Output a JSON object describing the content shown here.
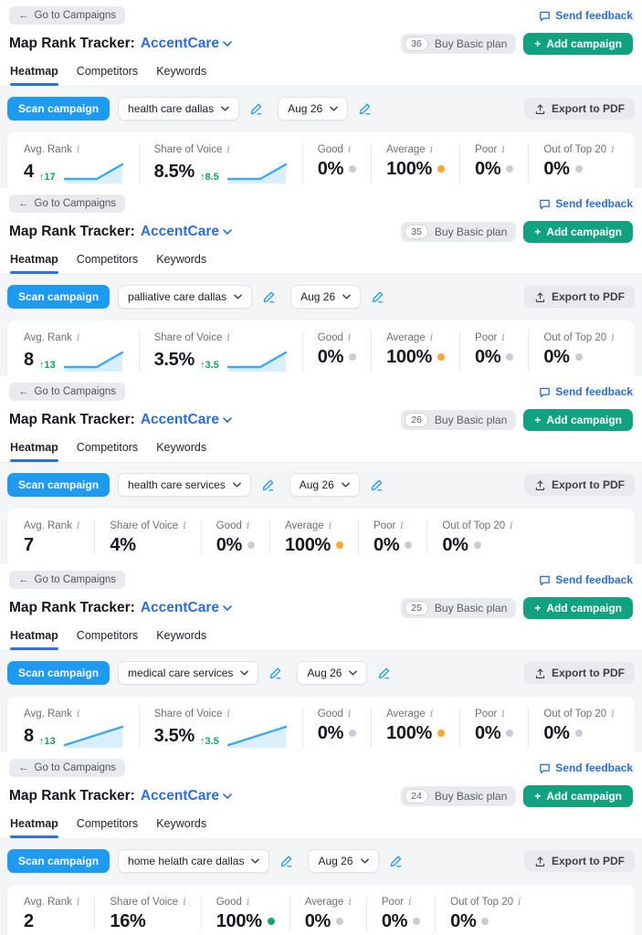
{
  "colors": {
    "ring_gray": "#c9ccd6",
    "ring_orange": "#ffa62e",
    "ring_green": "#14a374",
    "accent_blue": "#1e9bf0",
    "link_blue": "#2a6fd4",
    "green_button": "#12a181",
    "delta_green": "#169e68",
    "spark_stroke": "#3aa9f0",
    "spark_fill": "#d9effc",
    "tab_underline": "#2a74e0"
  },
  "shared": {
    "back_arrow": "←",
    "back_button": "Go to Campaigns",
    "send_feedback": "Send feedback",
    "title_prefix": "Map Rank Tracker:",
    "account_name": "AccentCare",
    "buy_basic_label": "Buy Basic plan",
    "add_campaign_plus": "+",
    "add_campaign_label": "Add campaign",
    "tabs": [
      "Heatmap",
      "Competitors",
      "Keywords"
    ],
    "active_tab": "Heatmap",
    "scan_button": "Scan campaign",
    "date_value": "Aug 26",
    "export_button": "Export to PDF",
    "info_glyph": "i",
    "up_arrow": "↑"
  },
  "spark_shapes": {
    "flat-rise": {
      "line": "1,21 36,21 64,5",
      "fill": "1,21 36,21 64,5 64,26 1,26"
    },
    "linear": {
      "line": "1,23 64,3",
      "fill": "1,23 64,3 64,26 1,26"
    }
  },
  "sections": [
    {
      "badge": "36",
      "keyword": "health care dallas",
      "metrics": [
        {
          "label": "Avg. Rank",
          "value": "4",
          "delta": "17",
          "spark": "flat-rise"
        },
        {
          "label": "Share of Voice",
          "value": "8.5%",
          "delta": "8.5",
          "spark": "flat-rise"
        },
        {
          "label": "Good",
          "value": "0%",
          "ring": "gray"
        },
        {
          "label": "Average",
          "value": "100%",
          "ring": "orange"
        },
        {
          "label": "Poor",
          "value": "0%",
          "ring": "gray"
        },
        {
          "label": "Out of Top 20",
          "value": "0%",
          "ring": "gray"
        }
      ]
    },
    {
      "badge": "35",
      "keyword": "palliative care dallas",
      "metrics": [
        {
          "label": "Avg. Rank",
          "value": "8",
          "delta": "13",
          "spark": "flat-rise"
        },
        {
          "label": "Share of Voice",
          "value": "3.5%",
          "delta": "3.5",
          "spark": "flat-rise"
        },
        {
          "label": "Good",
          "value": "0%",
          "ring": "gray"
        },
        {
          "label": "Average",
          "value": "100%",
          "ring": "orange"
        },
        {
          "label": "Poor",
          "value": "0%",
          "ring": "gray"
        },
        {
          "label": "Out of Top 20",
          "value": "0%",
          "ring": "gray"
        }
      ]
    },
    {
      "badge": "26",
      "keyword": "health care services",
      "metrics": [
        {
          "label": "Avg. Rank",
          "value": "7"
        },
        {
          "label": "Share of Voice",
          "value": "4%"
        },
        {
          "label": "Good",
          "value": "0%",
          "ring": "gray"
        },
        {
          "label": "Average",
          "value": "100%",
          "ring": "orange"
        },
        {
          "label": "Poor",
          "value": "0%",
          "ring": "gray"
        },
        {
          "label": "Out of Top 20",
          "value": "0%",
          "ring": "gray"
        }
      ]
    },
    {
      "badge": "25",
      "keyword": "medical care services",
      "metrics": [
        {
          "label": "Avg. Rank",
          "value": "8",
          "delta": "13",
          "spark": "linear"
        },
        {
          "label": "Share of Voice",
          "value": "3.5%",
          "delta": "3.5",
          "spark": "linear"
        },
        {
          "label": "Good",
          "value": "0%",
          "ring": "gray"
        },
        {
          "label": "Average",
          "value": "100%",
          "ring": "orange"
        },
        {
          "label": "Poor",
          "value": "0%",
          "ring": "gray"
        },
        {
          "label": "Out of Top 20",
          "value": "0%",
          "ring": "gray"
        }
      ]
    },
    {
      "badge": "24",
      "keyword": "home helath care dallas",
      "metrics": [
        {
          "label": "Avg. Rank",
          "value": "2"
        },
        {
          "label": "Share of Voice",
          "value": "16%"
        },
        {
          "label": "Good",
          "value": "100%",
          "ring": "green"
        },
        {
          "label": "Average",
          "value": "0%",
          "ring": "gray"
        },
        {
          "label": "Poor",
          "value": "0%",
          "ring": "gray"
        },
        {
          "label": "Out of Top 20",
          "value": "0%",
          "ring": "gray"
        }
      ]
    }
  ]
}
